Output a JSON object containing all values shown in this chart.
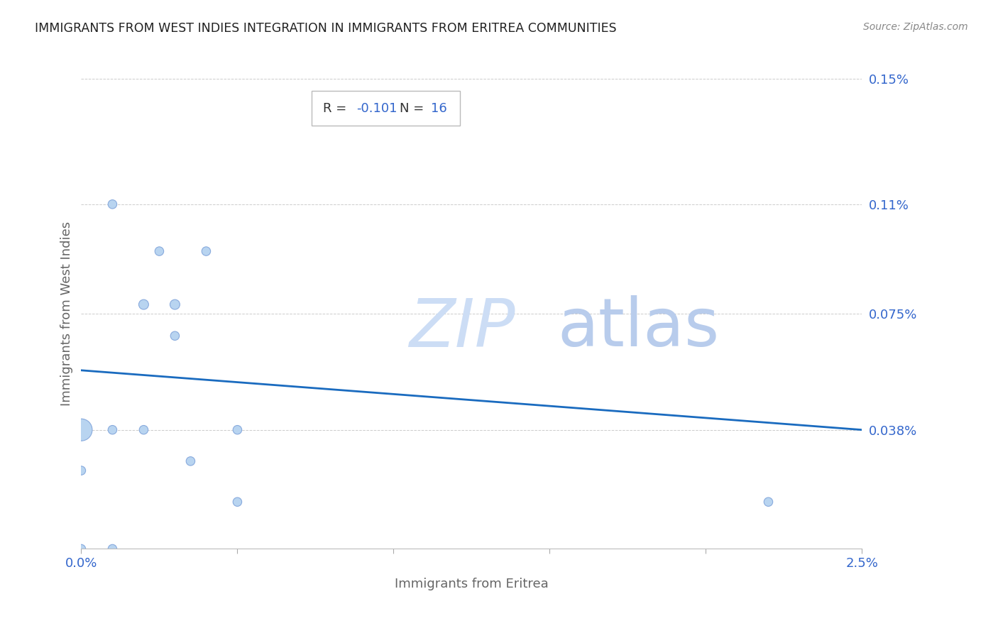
{
  "title": "IMMIGRANTS FROM WEST INDIES INTEGRATION IN IMMIGRANTS FROM ERITREA COMMUNITIES",
  "source": "Source: ZipAtlas.com",
  "xlabel": "Immigrants from Eritrea",
  "ylabel": "Immigrants from West Indies",
  "R": -0.101,
  "N": 16,
  "x_min": 0.0,
  "x_max": 0.025,
  "y_min": 0.0,
  "y_max": 0.0015,
  "yticks": [
    0.00038,
    0.00075,
    0.0011,
    0.0015
  ],
  "ytick_labels": [
    "0.038%",
    "0.075%",
    "0.11%",
    "0.15%"
  ],
  "xticks": [
    0.0,
    0.005,
    0.01,
    0.015,
    0.02,
    0.025
  ],
  "xtick_labels": [
    "0.0%",
    "",
    "",
    "",
    "",
    "2.5%"
  ],
  "scatter_x": [
    0.0,
    0.0,
    0.0,
    0.001,
    0.001,
    0.002,
    0.0025,
    0.003,
    0.003,
    0.004,
    0.005,
    0.005,
    0.022,
    0.001,
    0.002,
    0.0035
  ],
  "scatter_y": [
    0.00038,
    0.00025,
    0.0,
    0.00038,
    0.0,
    0.00038,
    0.00095,
    0.00078,
    0.00068,
    0.00095,
    0.00038,
    0.00015,
    0.00015,
    0.0011,
    0.00078,
    0.00028
  ],
  "scatter_sizes": [
    500,
    80,
    80,
    80,
    80,
    80,
    80,
    100,
    80,
    80,
    80,
    80,
    80,
    80,
    100,
    80
  ],
  "scatter_color": "#b8d4f0",
  "scatter_edgecolor": "#88aadd",
  "line_color": "#1a6bbf",
  "annotation_R_color": "#3366cc",
  "annotation_N_color": "#3366cc",
  "watermark_color": "#d0e4f8",
  "title_color": "#222222",
  "axis_label_color": "#666666",
  "tick_label_color": "#3366cc",
  "grid_color": "#cccccc",
  "background_color": "#ffffff"
}
